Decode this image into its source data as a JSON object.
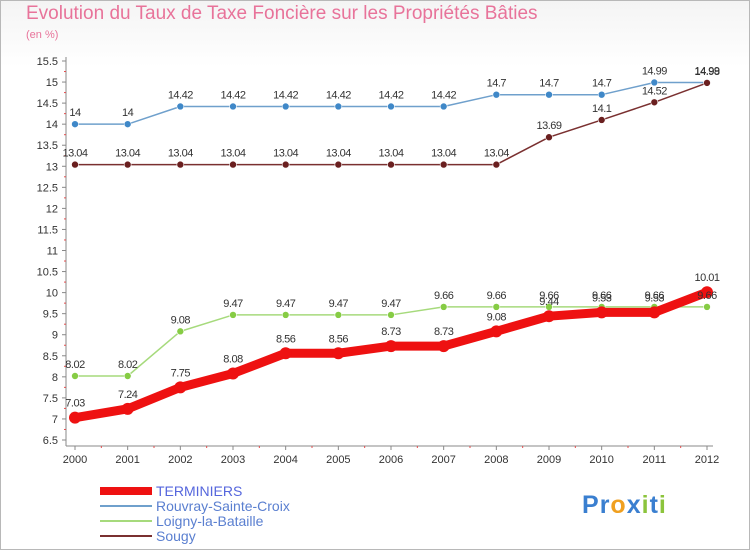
{
  "title": "Evolution du Taux de Taxe Foncière sur les Propriétés Bâties",
  "subtitle": "(en %)",
  "logo": {
    "letters": [
      "P",
      "r",
      "o",
      "x",
      "i",
      "t",
      "i"
    ],
    "colors": [
      "#3a7fd0",
      "#3a7fd0",
      "#f0a020",
      "#3a7fd0",
      "#8cc43c",
      "#3a7fd0",
      "#8cc43c"
    ]
  },
  "chart_data": {
    "type": "line",
    "title": "Evolution du Taux de Taxe Foncière sur les Propriétés Bâties",
    "ylabel": "(en %)",
    "x": [
      2000,
      2001,
      2002,
      2003,
      2004,
      2005,
      2006,
      2007,
      2008,
      2009,
      2010,
      2011,
      2012
    ],
    "ylim": [
      6.5,
      15.5
    ],
    "yticks": [
      6.5,
      7,
      7.5,
      8,
      8.5,
      9,
      9.5,
      10,
      10.5,
      11,
      11.5,
      12,
      12.5,
      13,
      13.5,
      14,
      14.5,
      15,
      15.5
    ],
    "grid": false,
    "legend_position": "bottom-left",
    "series": [
      {
        "name": "TERMINIERS",
        "color": "#ee1111",
        "width": 9,
        "marker": 6,
        "label_position": "above",
        "values": [
          7.03,
          7.24,
          7.75,
          8.08,
          8.56,
          8.56,
          8.73,
          8.73,
          9.08,
          9.44,
          9.53,
          9.53,
          10.01
        ],
        "labels": [
          "7.03",
          "7.24",
          "7.75",
          "8.08",
          "8.56",
          "8.56",
          "8.73",
          "8.73",
          "9.08",
          "9.44",
          "9.53",
          "9.53",
          "10.01"
        ]
      },
      {
        "name": "Rouvray-Sainte-Croix",
        "color": "#6fa0cc",
        "fill": "#3f88c8",
        "width": 1.5,
        "marker": 3.5,
        "label_position": "above",
        "values": [
          14,
          14,
          14.42,
          14.42,
          14.42,
          14.42,
          14.42,
          14.42,
          14.7,
          14.7,
          14.7,
          14.99,
          14.99
        ],
        "labels": [
          "14",
          "14",
          "14.42",
          "14.42",
          "14.42",
          "14.42",
          "14.42",
          "14.42",
          "14.7",
          "14.7",
          "14.7",
          "14.99",
          "14.99"
        ]
      },
      {
        "name": "Loigny-la-Bataille",
        "color": "#a6da7c",
        "fill": "#86cc44",
        "width": 1.5,
        "marker": 3.5,
        "label_position": "above",
        "values": [
          8.02,
          8.02,
          9.08,
          9.47,
          9.47,
          9.47,
          9.47,
          9.66,
          9.66,
          9.66,
          9.66,
          9.66,
          9.66
        ],
        "labels": [
          "8.02",
          "8.02",
          "9.08",
          "9.47",
          "9.47",
          "9.47",
          "9.47",
          "9.66",
          "9.66",
          "9.66",
          "9.66",
          "9.66",
          "9.66"
        ]
      },
      {
        "name": "Sougy",
        "color": "#7a3030",
        "fill": "#6a1f1f",
        "width": 1.5,
        "marker": 3.5,
        "label_position": "above",
        "values": [
          13.04,
          13.04,
          13.04,
          13.04,
          13.04,
          13.04,
          13.04,
          13.04,
          13.04,
          13.69,
          14.1,
          14.52,
          14.98
        ],
        "labels": [
          "13.04",
          "13.04",
          "13.04",
          "13.04",
          "13.04",
          "13.04",
          "13.04",
          "13.04",
          "13.04",
          "13.69",
          "14.1",
          "14.52",
          "14.98"
        ]
      }
    ]
  }
}
